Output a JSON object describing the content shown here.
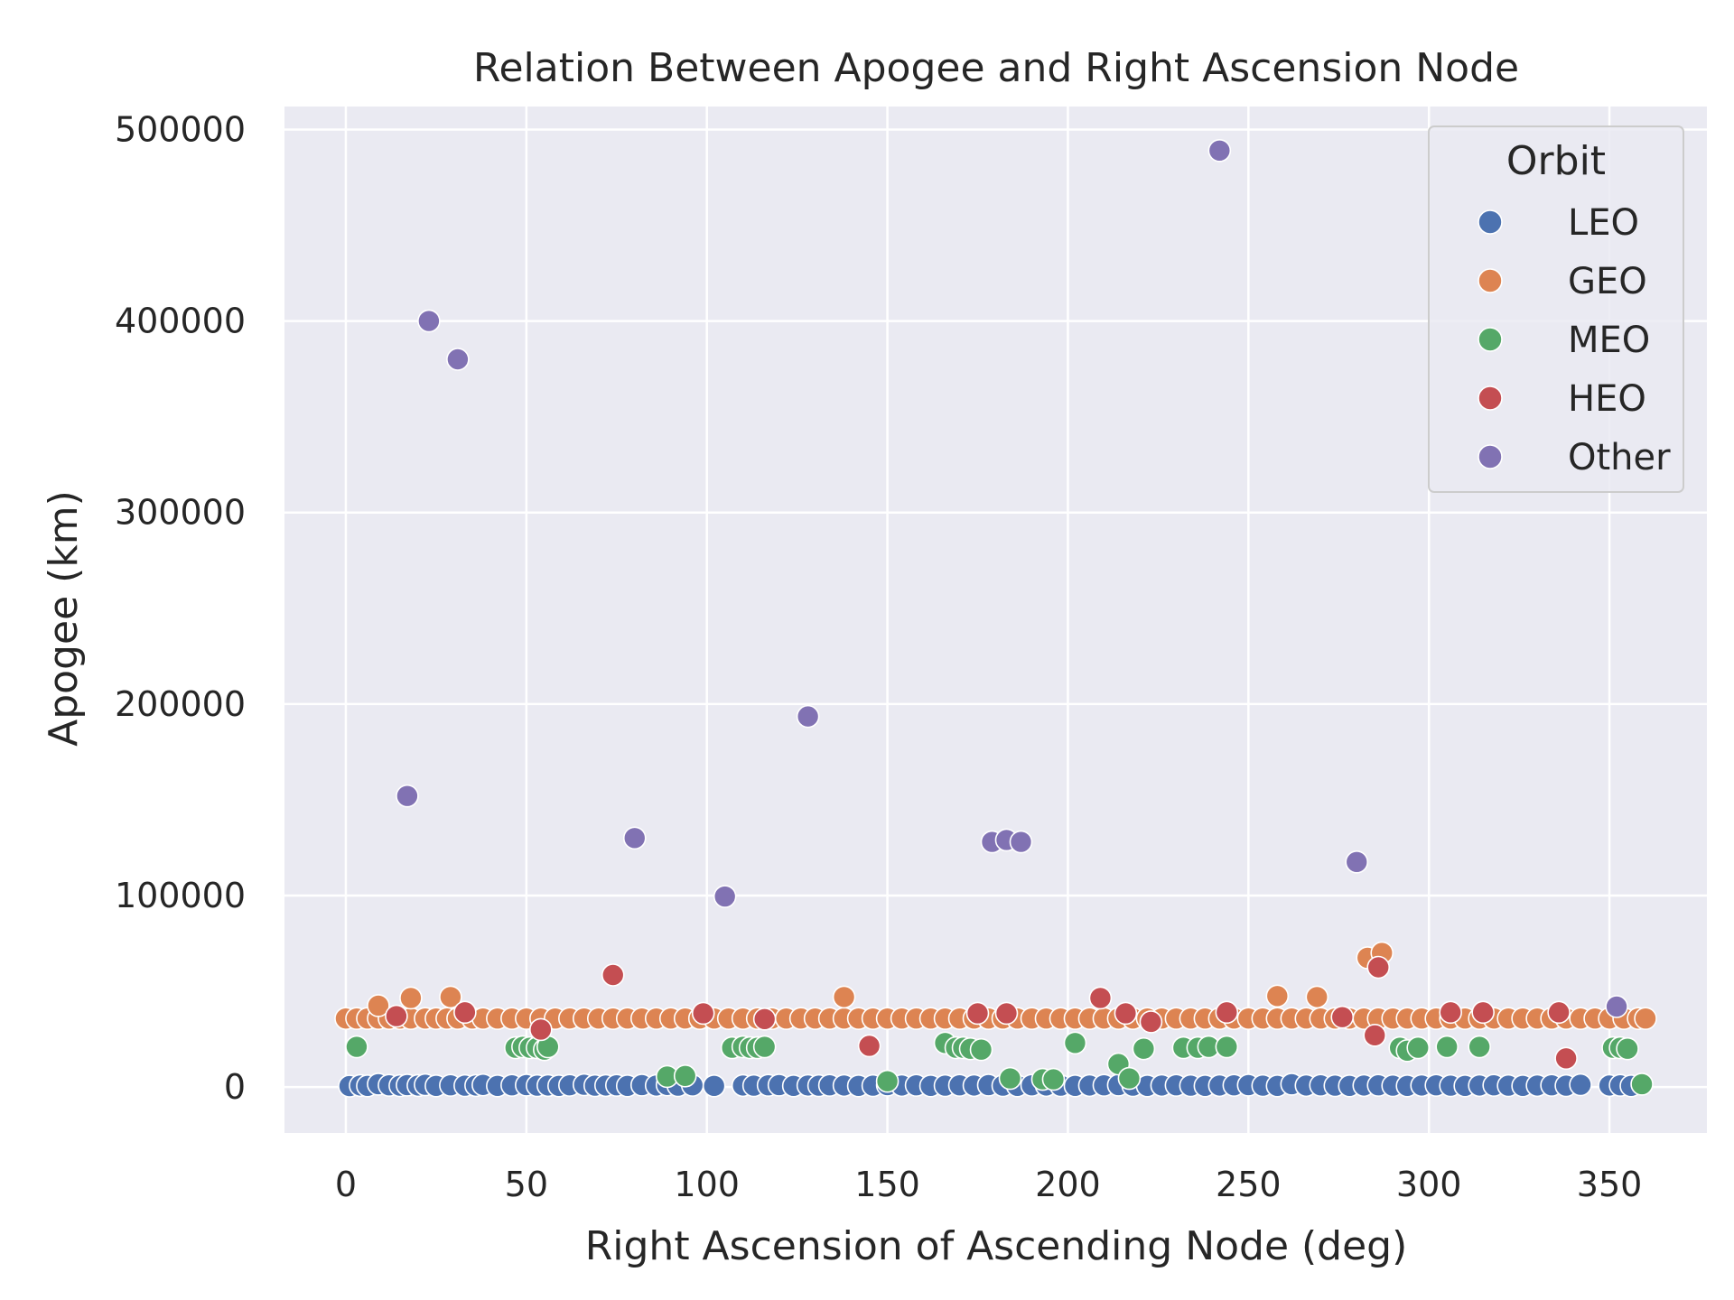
{
  "chart_data": {
    "type": "scatter",
    "title": "Relation Between Apogee and Right Ascension Node",
    "xlabel": "Right Ascension of Ascending Node (deg)",
    "ylabel": "Apogee (km)",
    "xlim": [
      -17,
      377
    ],
    "ylim": [
      -24000,
      512000
    ],
    "xticks": [
      0,
      50,
      100,
      150,
      200,
      250,
      300,
      350
    ],
    "yticks": [
      0,
      100000,
      200000,
      300000,
      400000,
      500000
    ],
    "grid": true,
    "legend": {
      "title": "Orbit",
      "position": "top-right"
    },
    "series": [
      {
        "name": "LEO",
        "color": "#4c72b0",
        "x": [
          1,
          4,
          6,
          9,
          12,
          15,
          17,
          20,
          22,
          25,
          29,
          33,
          36,
          38,
          42,
          46,
          50,
          53,
          56,
          59,
          62,
          66,
          69,
          72,
          75,
          78,
          82,
          86,
          89,
          92,
          96,
          102,
          110,
          113,
          117,
          120,
          124,
          128,
          131,
          134,
          138,
          142,
          146,
          150,
          154,
          158,
          162,
          166,
          170,
          174,
          178,
          182,
          186,
          190,
          194,
          198,
          202,
          206,
          210,
          214,
          218,
          222,
          226,
          230,
          234,
          238,
          242,
          246,
          250,
          254,
          258,
          262,
          266,
          270,
          274,
          278,
          282,
          286,
          290,
          294,
          298,
          302,
          306,
          310,
          314,
          318,
          322,
          326,
          330,
          334,
          338,
          342,
          350,
          353,
          356
        ],
        "y": [
          500,
          800,
          600,
          1500,
          900,
          700,
          1000,
          800,
          1200,
          600,
          900,
          700,
          800,
          1100,
          600,
          900,
          1000,
          700,
          800,
          600,
          900,
          1200,
          700,
          800,
          900,
          600,
          1000,
          800,
          1100,
          700,
          900,
          600,
          800,
          700,
          900,
          1000,
          600,
          800,
          700,
          900,
          800,
          600,
          700,
          1000,
          800,
          900,
          600,
          700,
          900,
          800,
          1000,
          700,
          600,
          900,
          800,
          700,
          600,
          800,
          900,
          1000,
          700,
          600,
          800,
          900,
          700,
          600,
          800,
          900,
          1000,
          700,
          600,
          1500,
          800,
          900,
          700,
          600,
          800,
          900,
          700,
          600,
          800,
          900,
          700,
          600,
          800,
          900,
          700,
          600,
          800,
          900,
          700,
          1200,
          800,
          900,
          600
        ]
      },
      {
        "name": "GEO",
        "color": "#dd8452",
        "x": [
          0,
          3,
          6,
          9,
          12,
          15,
          18,
          22,
          25,
          28,
          31,
          35,
          38,
          42,
          46,
          50,
          54,
          58,
          62,
          66,
          70,
          74,
          78,
          82,
          86,
          90,
          94,
          98,
          102,
          106,
          110,
          114,
          118,
          122,
          126,
          130,
          134,
          138,
          142,
          146,
          150,
          154,
          158,
          162,
          166,
          170,
          174,
          178,
          182,
          186,
          190,
          194,
          198,
          202,
          206,
          210,
          214,
          218,
          222,
          226,
          230,
          234,
          238,
          242,
          246,
          250,
          254,
          258,
          262,
          266,
          270,
          274,
          278,
          282,
          286,
          290,
          294,
          298,
          302,
          306,
          310,
          314,
          318,
          322,
          326,
          330,
          334,
          338,
          342,
          346,
          350,
          354,
          358,
          360,
          9,
          18,
          29,
          138,
          258,
          269,
          283,
          287
        ],
        "y": [
          35800,
          35800,
          35800,
          35800,
          35800,
          35800,
          35800,
          35800,
          35800,
          35800,
          35800,
          35800,
          35800,
          35800,
          35800,
          35800,
          35800,
          35800,
          35800,
          35800,
          35800,
          35800,
          35800,
          35800,
          35800,
          35800,
          35800,
          35800,
          35800,
          35800,
          35800,
          35800,
          35800,
          35800,
          35800,
          35800,
          35800,
          35800,
          35800,
          35800,
          35800,
          35800,
          35800,
          35800,
          35800,
          35800,
          35800,
          35800,
          35800,
          35800,
          35800,
          35800,
          35800,
          35800,
          35800,
          35800,
          35800,
          35800,
          35800,
          35800,
          35800,
          35800,
          35800,
          35800,
          35800,
          35800,
          35800,
          35800,
          35800,
          35800,
          35800,
          35800,
          35800,
          35800,
          35800,
          35800,
          35800,
          35800,
          35800,
          35800,
          35800,
          35800,
          35800,
          35800,
          35800,
          35800,
          35800,
          35800,
          35800,
          35800,
          35800,
          35800,
          35800,
          35800,
          42500,
          46500,
          47000,
          47000,
          47500,
          47000,
          67500,
          70000
        ]
      },
      {
        "name": "MEO",
        "color": "#55a868",
        "x": [
          3,
          47,
          49,
          51,
          53,
          55,
          56,
          89,
          94,
          107,
          110,
          112,
          114,
          116,
          150,
          166,
          169,
          171,
          173,
          176,
          184,
          193,
          196,
          202,
          214,
          217,
          221,
          232,
          236,
          239,
          244,
          292,
          294,
          297,
          305,
          314,
          351,
          353,
          355,
          359
        ],
        "y": [
          21000,
          20500,
          21000,
          20500,
          20500,
          19500,
          21000,
          5500,
          5800,
          20500,
          21000,
          20500,
          20500,
          21000,
          3000,
          23000,
          20500,
          20500,
          20000,
          19500,
          4500,
          4000,
          4000,
          23000,
          12000,
          4500,
          20000,
          20500,
          20500,
          21000,
          21000,
          20500,
          19000,
          20500,
          21000,
          21000,
          20500,
          20500,
          20000,
          1500
        ]
      },
      {
        "name": "HEO",
        "color": "#c44e52",
        "x": [
          14,
          33,
          54,
          74,
          99,
          116,
          145,
          175,
          183,
          209,
          216,
          223,
          244,
          276,
          285,
          286,
          306,
          315,
          336,
          338
        ],
        "y": [
          37000,
          39000,
          30000,
          58500,
          38500,
          35500,
          21500,
          38500,
          38500,
          46500,
          38500,
          34000,
          39000,
          36500,
          27000,
          62500,
          39000,
          39000,
          39000,
          15000
        ]
      },
      {
        "name": "Other",
        "color": "#8172b3",
        "x": [
          17,
          23,
          31,
          80,
          105,
          128,
          179,
          183,
          187,
          242,
          280,
          352
        ],
        "y": [
          152000,
          400000,
          380000,
          130000,
          99500,
          193500,
          128000,
          129000,
          128000,
          489000,
          117500,
          42000
        ]
      }
    ]
  }
}
